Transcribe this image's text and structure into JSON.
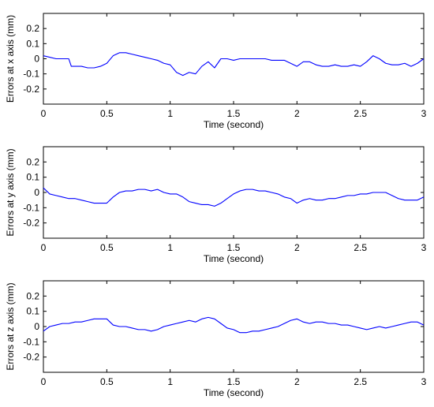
{
  "chart_data": [
    {
      "type": "line",
      "xlabel": "Time (second)",
      "ylabel": "Errors at x axis (mm)",
      "xlim": [
        0,
        3
      ],
      "ylim": [
        -0.3,
        0.3
      ],
      "xticks": [
        "0",
        "0.5",
        "1",
        "1.5",
        "2",
        "2.5",
        "3"
      ],
      "yticks": [
        "0.2",
        "0.1",
        "0",
        "-0.1",
        "-0.2"
      ],
      "grid": false,
      "color": "#0000ff",
      "series": [
        {
          "x": [
            0,
            0.05,
            0.1,
            0.15,
            0.2,
            0.22,
            0.25,
            0.3,
            0.35,
            0.4,
            0.45,
            0.5,
            0.55,
            0.6,
            0.65,
            0.7,
            0.75,
            0.8,
            0.85,
            0.9,
            0.95,
            1.0,
            1.05,
            1.1,
            1.15,
            1.2,
            1.25,
            1.3,
            1.35,
            1.4,
            1.45,
            1.5,
            1.55,
            1.6,
            1.65,
            1.7,
            1.75,
            1.8,
            1.85,
            1.9,
            1.95,
            2.0,
            2.05,
            2.1,
            2.15,
            2.2,
            2.25,
            2.3,
            2.35,
            2.4,
            2.45,
            2.5,
            2.55,
            2.6,
            2.65,
            2.7,
            2.75,
            2.8,
            2.85,
            2.9,
            2.95,
            3.0
          ],
          "y": [
            0.02,
            0.01,
            0.0,
            0.0,
            0.0,
            -0.05,
            -0.05,
            -0.05,
            -0.06,
            -0.06,
            -0.05,
            -0.03,
            0.02,
            0.04,
            0.04,
            0.03,
            0.02,
            0.01,
            0.0,
            -0.01,
            -0.03,
            -0.04,
            -0.09,
            -0.11,
            -0.09,
            -0.1,
            -0.05,
            -0.02,
            -0.06,
            0.0,
            0.0,
            -0.01,
            0.0,
            0.0,
            0.0,
            0.0,
            0.0,
            -0.01,
            -0.01,
            -0.01,
            -0.03,
            -0.05,
            -0.02,
            -0.02,
            -0.04,
            -0.05,
            -0.05,
            -0.04,
            -0.05,
            -0.05,
            -0.04,
            -0.05,
            -0.02,
            0.02,
            0.0,
            -0.03,
            -0.04,
            -0.04,
            -0.03,
            -0.05,
            -0.03,
            0.0
          ]
        }
      ]
    },
    {
      "type": "line",
      "xlabel": "Time (second)",
      "ylabel": "Errors at y axis (mm)",
      "xlim": [
        0,
        3
      ],
      "ylim": [
        -0.3,
        0.3
      ],
      "xticks": [
        "0",
        "0.5",
        "1",
        "1.5",
        "2",
        "2.5",
        "3"
      ],
      "yticks": [
        "0.2",
        "0.1",
        "0",
        "-0.1",
        "-0.2"
      ],
      "grid": false,
      "color": "#0000ff",
      "series": [
        {
          "x": [
            0,
            0.05,
            0.1,
            0.15,
            0.2,
            0.25,
            0.3,
            0.35,
            0.4,
            0.45,
            0.5,
            0.55,
            0.6,
            0.65,
            0.7,
            0.75,
            0.8,
            0.85,
            0.9,
            0.95,
            1.0,
            1.05,
            1.1,
            1.15,
            1.2,
            1.25,
            1.3,
            1.35,
            1.4,
            1.45,
            1.5,
            1.55,
            1.6,
            1.65,
            1.7,
            1.75,
            1.8,
            1.85,
            1.9,
            1.95,
            2.0,
            2.05,
            2.1,
            2.15,
            2.2,
            2.25,
            2.3,
            2.35,
            2.4,
            2.45,
            2.5,
            2.55,
            2.6,
            2.65,
            2.7,
            2.75,
            2.8,
            2.85,
            2.9,
            2.95,
            3.0
          ],
          "y": [
            0.03,
            -0.01,
            -0.02,
            -0.03,
            -0.04,
            -0.04,
            -0.05,
            -0.06,
            -0.07,
            -0.07,
            -0.07,
            -0.03,
            0.0,
            0.01,
            0.01,
            0.02,
            0.02,
            0.01,
            0.02,
            0.0,
            -0.01,
            -0.01,
            -0.03,
            -0.06,
            -0.07,
            -0.08,
            -0.08,
            -0.09,
            -0.07,
            -0.04,
            -0.01,
            0.01,
            0.02,
            0.02,
            0.01,
            0.01,
            0.0,
            -0.01,
            -0.03,
            -0.04,
            -0.07,
            -0.05,
            -0.04,
            -0.05,
            -0.05,
            -0.04,
            -0.04,
            -0.03,
            -0.02,
            -0.02,
            -0.01,
            -0.01,
            0.0,
            0.0,
            0.0,
            -0.02,
            -0.04,
            -0.05,
            -0.05,
            -0.05,
            -0.03
          ]
        }
      ]
    },
    {
      "type": "line",
      "xlabel": "Time (second)",
      "ylabel": "Errors at z axis (mm)",
      "xlim": [
        0,
        3
      ],
      "ylim": [
        -0.3,
        0.3
      ],
      "xticks": [
        "0",
        "0.5",
        "1",
        "1.5",
        "2",
        "2.5",
        "3"
      ],
      "yticks": [
        "0.2",
        "0.1",
        "0",
        "-0.1",
        "-0.2"
      ],
      "grid": false,
      "color": "#0000ff",
      "series": [
        {
          "x": [
            0,
            0.05,
            0.1,
            0.15,
            0.2,
            0.25,
            0.3,
            0.35,
            0.4,
            0.45,
            0.5,
            0.55,
            0.6,
            0.65,
            0.7,
            0.75,
            0.8,
            0.85,
            0.9,
            0.95,
            1.0,
            1.05,
            1.1,
            1.15,
            1.2,
            1.25,
            1.3,
            1.35,
            1.4,
            1.45,
            1.5,
            1.55,
            1.6,
            1.65,
            1.7,
            1.75,
            1.8,
            1.85,
            1.9,
            1.95,
            2.0,
            2.05,
            2.1,
            2.15,
            2.2,
            2.25,
            2.3,
            2.35,
            2.4,
            2.45,
            2.5,
            2.55,
            2.6,
            2.65,
            2.7,
            2.75,
            2.8,
            2.85,
            2.9,
            2.95,
            3.0
          ],
          "y": [
            -0.03,
            0.0,
            0.01,
            0.02,
            0.02,
            0.03,
            0.03,
            0.04,
            0.05,
            0.05,
            0.05,
            0.01,
            0.0,
            0.0,
            -0.01,
            -0.02,
            -0.02,
            -0.03,
            -0.02,
            0.0,
            0.01,
            0.02,
            0.03,
            0.04,
            0.03,
            0.05,
            0.06,
            0.05,
            0.02,
            -0.01,
            -0.02,
            -0.04,
            -0.04,
            -0.03,
            -0.03,
            -0.02,
            -0.01,
            0.0,
            0.02,
            0.04,
            0.05,
            0.03,
            0.02,
            0.03,
            0.03,
            0.02,
            0.02,
            0.01,
            0.01,
            0.0,
            -0.01,
            -0.02,
            -0.01,
            0.0,
            -0.01,
            0.0,
            0.01,
            0.02,
            0.03,
            0.03,
            0.01
          ]
        }
      ]
    }
  ]
}
